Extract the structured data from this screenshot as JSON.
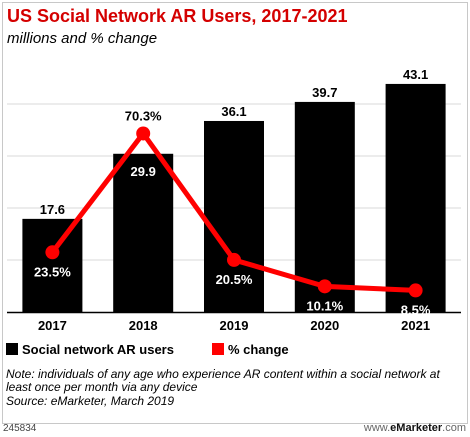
{
  "header": {
    "title": "US Social Network AR Users, 2017-2021",
    "subtitle": "millions and % change"
  },
  "chart_data": {
    "type": "bar",
    "categories": [
      "2017",
      "2018",
      "2019",
      "2020",
      "2021"
    ],
    "series": [
      {
        "name": "Social network AR users",
        "type": "bar",
        "values": [
          17.6,
          29.9,
          36.1,
          39.7,
          43.1
        ],
        "labels": [
          "17.6",
          "29.9",
          "36.1",
          "39.7",
          "43.1"
        ],
        "color": "#000000"
      },
      {
        "name": "% change",
        "type": "line",
        "values": [
          23.5,
          70.3,
          20.5,
          10.1,
          8.5
        ],
        "labels": [
          "23.5%",
          "70.3%",
          "20.5%",
          "10.1%",
          "8.5%"
        ],
        "color": "#ff0000"
      }
    ],
    "ylim_bars": [
      0,
      48
    ],
    "ylim_line": [
      0,
      100
    ],
    "grid": true,
    "legend_position": "bottom-left"
  },
  "legend": {
    "bars_label": "Social network AR users",
    "line_label": "% change",
    "bars_color": "#000000",
    "line_color": "#ff0000"
  },
  "notes": {
    "note": "Note: individuals of any age who experience AR content within a social network at least once per month via any device",
    "source": "Source: eMarketer, March 2019"
  },
  "footer": {
    "chart_id": "245834",
    "brand_prefix": "www.",
    "brand_name": "eMarketer",
    "brand_suffix": ".com"
  }
}
